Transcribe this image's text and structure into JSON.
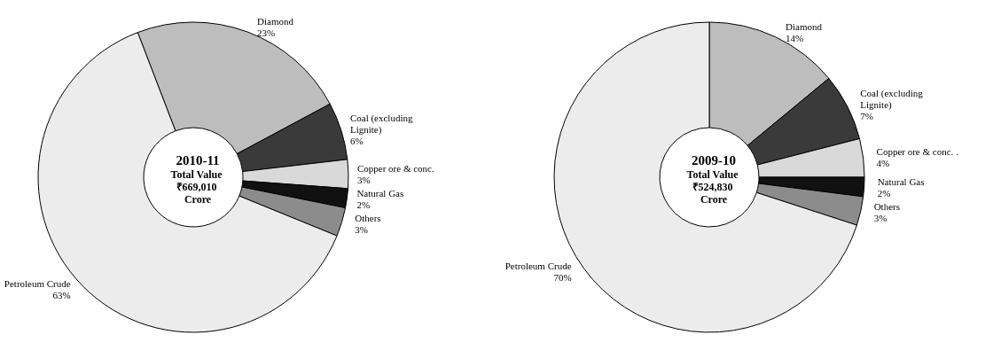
{
  "chart_data": [
    {
      "type": "donut",
      "title": "2010-11",
      "subtitle": "Total Value ₹669,010 Crore",
      "categories": [
        "Diamond",
        "Coal (excluding Lignite)",
        "Copper ore & conc.",
        "Natural Gas",
        "Others",
        "Petroleum Crude"
      ],
      "values": [
        23,
        6,
        3,
        2,
        3,
        63
      ],
      "value_labels": [
        "23%",
        "6%",
        "3%",
        "2%",
        "3%",
        "63%"
      ],
      "colors": [
        "#bdbdbd",
        "#3a3a3a",
        "#d9d9d9",
        "#111111",
        "#8c8c8c",
        "#ececec"
      ],
      "legend": false
    },
    {
      "type": "donut",
      "title": "2009-10",
      "subtitle": "Total Value ₹524,830 Crore",
      "categories": [
        "Diamond",
        "Coal (excluding Lignite)",
        "Copper ore & conc. .",
        "Natural Gas",
        "Others",
        "Petroleum Crude"
      ],
      "values": [
        14,
        7,
        4,
        2,
        3,
        70
      ],
      "value_labels": [
        "14%",
        "7%",
        "4%",
        "2%",
        "3%",
        "70%"
      ],
      "colors": [
        "#bdbdbd",
        "#3a3a3a",
        "#d9d9d9",
        "#111111",
        "#8c8c8c",
        "#ececec"
      ],
      "legend": false
    }
  ]
}
